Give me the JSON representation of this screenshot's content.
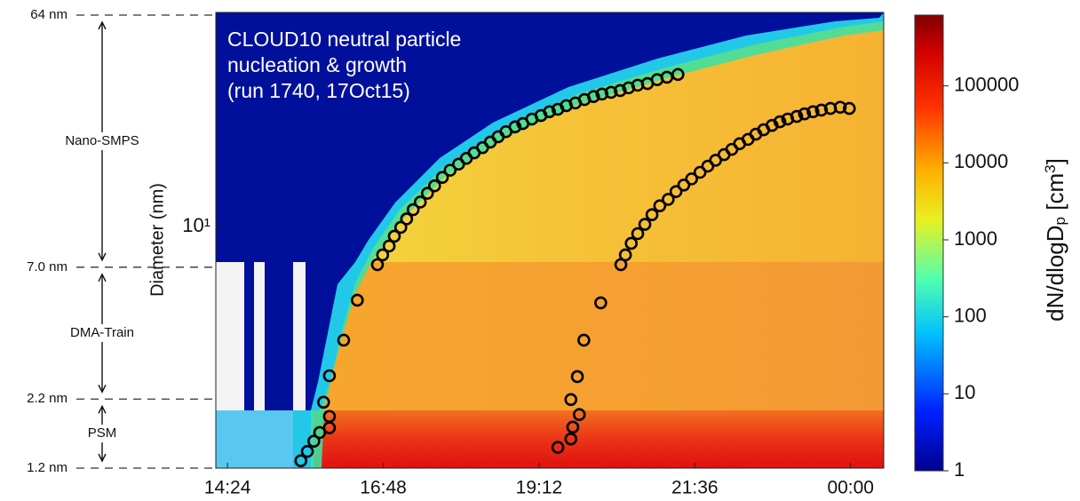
{
  "chart_data": {
    "type": "scatter",
    "title": [
      "CLOUD10 neutral particle",
      "nucleation & growth",
      "(run 1740, 17Oct15)"
    ],
    "y_label": "Diameter (nm)",
    "xlim": [
      14.22,
      24.51
    ],
    "xticks": [
      {
        "value": 14.4,
        "label": "14:24"
      },
      {
        "value": 16.8,
        "label": "16:48"
      },
      {
        "value": 19.2,
        "label": "19:12"
      },
      {
        "value": 21.6,
        "label": "21:36"
      },
      {
        "value": 24.0,
        "label": "00:00"
      }
    ],
    "ylim": [
      1.2,
      64
    ],
    "y_scale": "log",
    "yticks": [
      {
        "value": 10,
        "label": "10¹"
      }
    ],
    "diameter_markers": [
      {
        "value": 64,
        "label": "64 nm"
      },
      {
        "value": 7.0,
        "label": "7.0 nm"
      },
      {
        "value": 2.2,
        "label": "2.2 nm"
      },
      {
        "value": 1.2,
        "label": "1.2 nm"
      }
    ],
    "instruments": [
      {
        "name": "Nano-SMPS",
        "range": [
          7.0,
          64
        ]
      },
      {
        "name": "DMA-Train",
        "range": [
          2.2,
          7.0
        ]
      },
      {
        "name": "PSM",
        "range": [
          1.2,
          2.2
        ]
      }
    ],
    "series": [
      {
        "color": "#000000",
        "x": [
          15.53,
          15.63,
          15.73,
          15.82,
          15.97,
          15.97,
          15.88,
          15.97,
          16.19,
          16.4,
          16.71,
          16.79,
          16.89,
          16.97,
          17.07,
          17.16,
          17.26,
          17.37,
          17.48,
          17.59,
          17.71,
          17.83,
          17.96,
          18.08,
          18.2,
          18.33,
          18.45,
          18.57,
          18.69,
          18.83,
          18.95,
          19.09,
          19.23,
          19.36,
          19.49,
          19.62,
          19.76,
          19.9,
          20.04,
          20.17,
          20.31,
          20.45,
          20.58,
          20.72,
          20.87,
          21.02,
          21.17,
          21.34
        ],
        "y": [
          1.28,
          1.39,
          1.52,
          1.64,
          1.71,
          1.89,
          2.14,
          2.7,
          3.69,
          5.24,
          7.16,
          7.8,
          8.43,
          9.19,
          9.93,
          10.7,
          11.6,
          12.4,
          13.4,
          14.3,
          15.4,
          16.4,
          17.3,
          18.2,
          19.1,
          20.0,
          21.0,
          22.0,
          23.0,
          24.0,
          24.7,
          25.7,
          26.5,
          27.4,
          28.0,
          28.9,
          29.6,
          30.5,
          31.3,
          32.0,
          32.5,
          33.0,
          33.8,
          34.6,
          35.1,
          36.3,
          37.1,
          38.0
        ]
      },
      {
        "color": "#000000",
        "x": [
          19.49,
          19.69,
          19.72,
          19.82,
          19.69,
          19.79,
          19.89,
          20.15,
          20.46,
          20.53,
          20.62,
          20.72,
          20.83,
          20.94,
          21.06,
          21.19,
          21.31,
          21.43,
          21.55,
          21.68,
          21.8,
          21.92,
          22.05,
          22.17,
          22.29,
          22.42,
          22.54,
          22.66,
          22.79,
          22.91,
          23.03,
          23.17,
          23.29,
          23.42,
          23.55,
          23.69,
          23.84,
          23.98
        ],
        "y": [
          1.44,
          1.55,
          1.72,
          1.92,
          2.19,
          2.68,
          3.69,
          5.12,
          7.16,
          7.8,
          8.63,
          9.4,
          10.2,
          11.1,
          12.0,
          12.7,
          13.6,
          14.4,
          15.2,
          16.1,
          17.0,
          17.9,
          18.8,
          19.7,
          20.7,
          21.5,
          22.5,
          23.4,
          24.3,
          25.1,
          25.7,
          26.3,
          26.9,
          27.4,
          27.8,
          28.2,
          28.5,
          28.2
        ]
      }
    ],
    "colorbar": {
      "label": [
        "dN/dlogD",
        "p",
        " [cm",
        "3",
        "]"
      ],
      "lim": [
        1,
        830000
      ],
      "scale": "log",
      "ticks": [
        1,
        10,
        100,
        1000,
        10000,
        100000
      ]
    }
  }
}
